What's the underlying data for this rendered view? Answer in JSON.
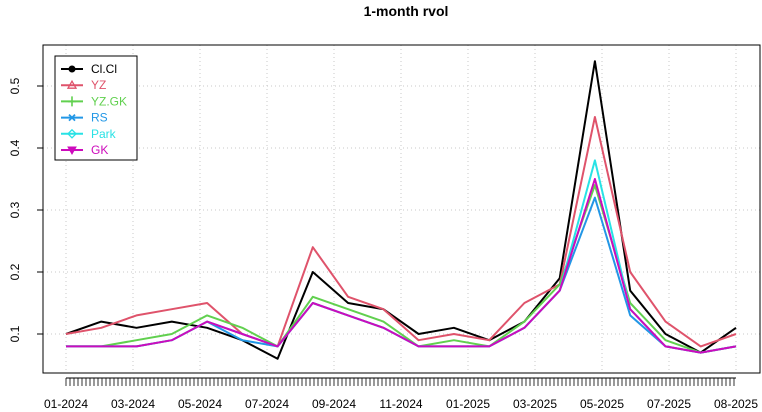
{
  "chart_data": {
    "type": "line",
    "title": "1-month rvol",
    "xlabel": "",
    "ylabel": "",
    "x_ticks": [
      "01-2024",
      "03-2024",
      "05-2024",
      "07-2024",
      "09-2024",
      "11-2024",
      "01-2025",
      "03-2025",
      "05-2025",
      "07-2025",
      "08-2025"
    ],
    "ylim": [
      0.05,
      0.55
    ],
    "y_ticks": [
      "0.1",
      "0.2",
      "0.3",
      "0.4",
      "0.5"
    ],
    "grid": true,
    "legend_position": "top-left",
    "x": [
      "2024-01",
      "2024-02",
      "2024-03",
      "2024-04",
      "2024-05",
      "2024-06",
      "2024-07",
      "2024-08",
      "2024-09",
      "2024-10",
      "2024-11",
      "2024-12",
      "2025-01",
      "2025-02",
      "2025-03",
      "2025-04",
      "2025-05",
      "2025-06",
      "2025-07",
      "2025-08"
    ],
    "series": [
      {
        "name": "Cl.Cl",
        "color": "#000000",
        "marker": "circle",
        "values": [
          0.1,
          0.12,
          0.11,
          0.12,
          0.11,
          0.09,
          0.06,
          0.2,
          0.15,
          0.14,
          0.1,
          0.11,
          0.09,
          0.12,
          0.19,
          0.54,
          0.17,
          0.1,
          0.07,
          0.11
        ]
      },
      {
        "name": "YZ",
        "color": "#DF536B",
        "marker": "triangle",
        "values": [
          0.1,
          0.11,
          0.13,
          0.14,
          0.15,
          0.1,
          0.08,
          0.24,
          0.16,
          0.14,
          0.09,
          0.1,
          0.09,
          0.15,
          0.18,
          0.45,
          0.2,
          0.12,
          0.08,
          0.1
        ]
      },
      {
        "name": "YZ.GK",
        "color": "#61D04F",
        "marker": "plus",
        "values": [
          0.08,
          0.08,
          0.09,
          0.1,
          0.13,
          0.11,
          0.08,
          0.16,
          0.14,
          0.12,
          0.08,
          0.09,
          0.08,
          0.12,
          0.18,
          0.34,
          0.15,
          0.09,
          0.07,
          0.08
        ]
      },
      {
        "name": "RS",
        "color": "#2297E6",
        "marker": "cross",
        "values": [
          0.08,
          0.08,
          0.08,
          0.09,
          0.12,
          0.09,
          0.08,
          0.15,
          0.13,
          0.11,
          0.08,
          0.08,
          0.08,
          0.11,
          0.17,
          0.32,
          0.13,
          0.08,
          0.07,
          0.08
        ]
      },
      {
        "name": "Park",
        "color": "#28E2E5",
        "marker": "diamond",
        "values": [
          0.08,
          0.08,
          0.08,
          0.09,
          0.12,
          0.1,
          0.08,
          0.15,
          0.13,
          0.11,
          0.08,
          0.08,
          0.08,
          0.11,
          0.17,
          0.38,
          0.14,
          0.08,
          0.07,
          0.08
        ]
      },
      {
        "name": "GK",
        "color": "#CD0BBC",
        "marker": "triangle-down",
        "values": [
          0.08,
          0.08,
          0.08,
          0.09,
          0.12,
          0.1,
          0.08,
          0.15,
          0.13,
          0.11,
          0.08,
          0.08,
          0.08,
          0.11,
          0.17,
          0.35,
          0.14,
          0.08,
          0.07,
          0.08
        ]
      }
    ]
  }
}
